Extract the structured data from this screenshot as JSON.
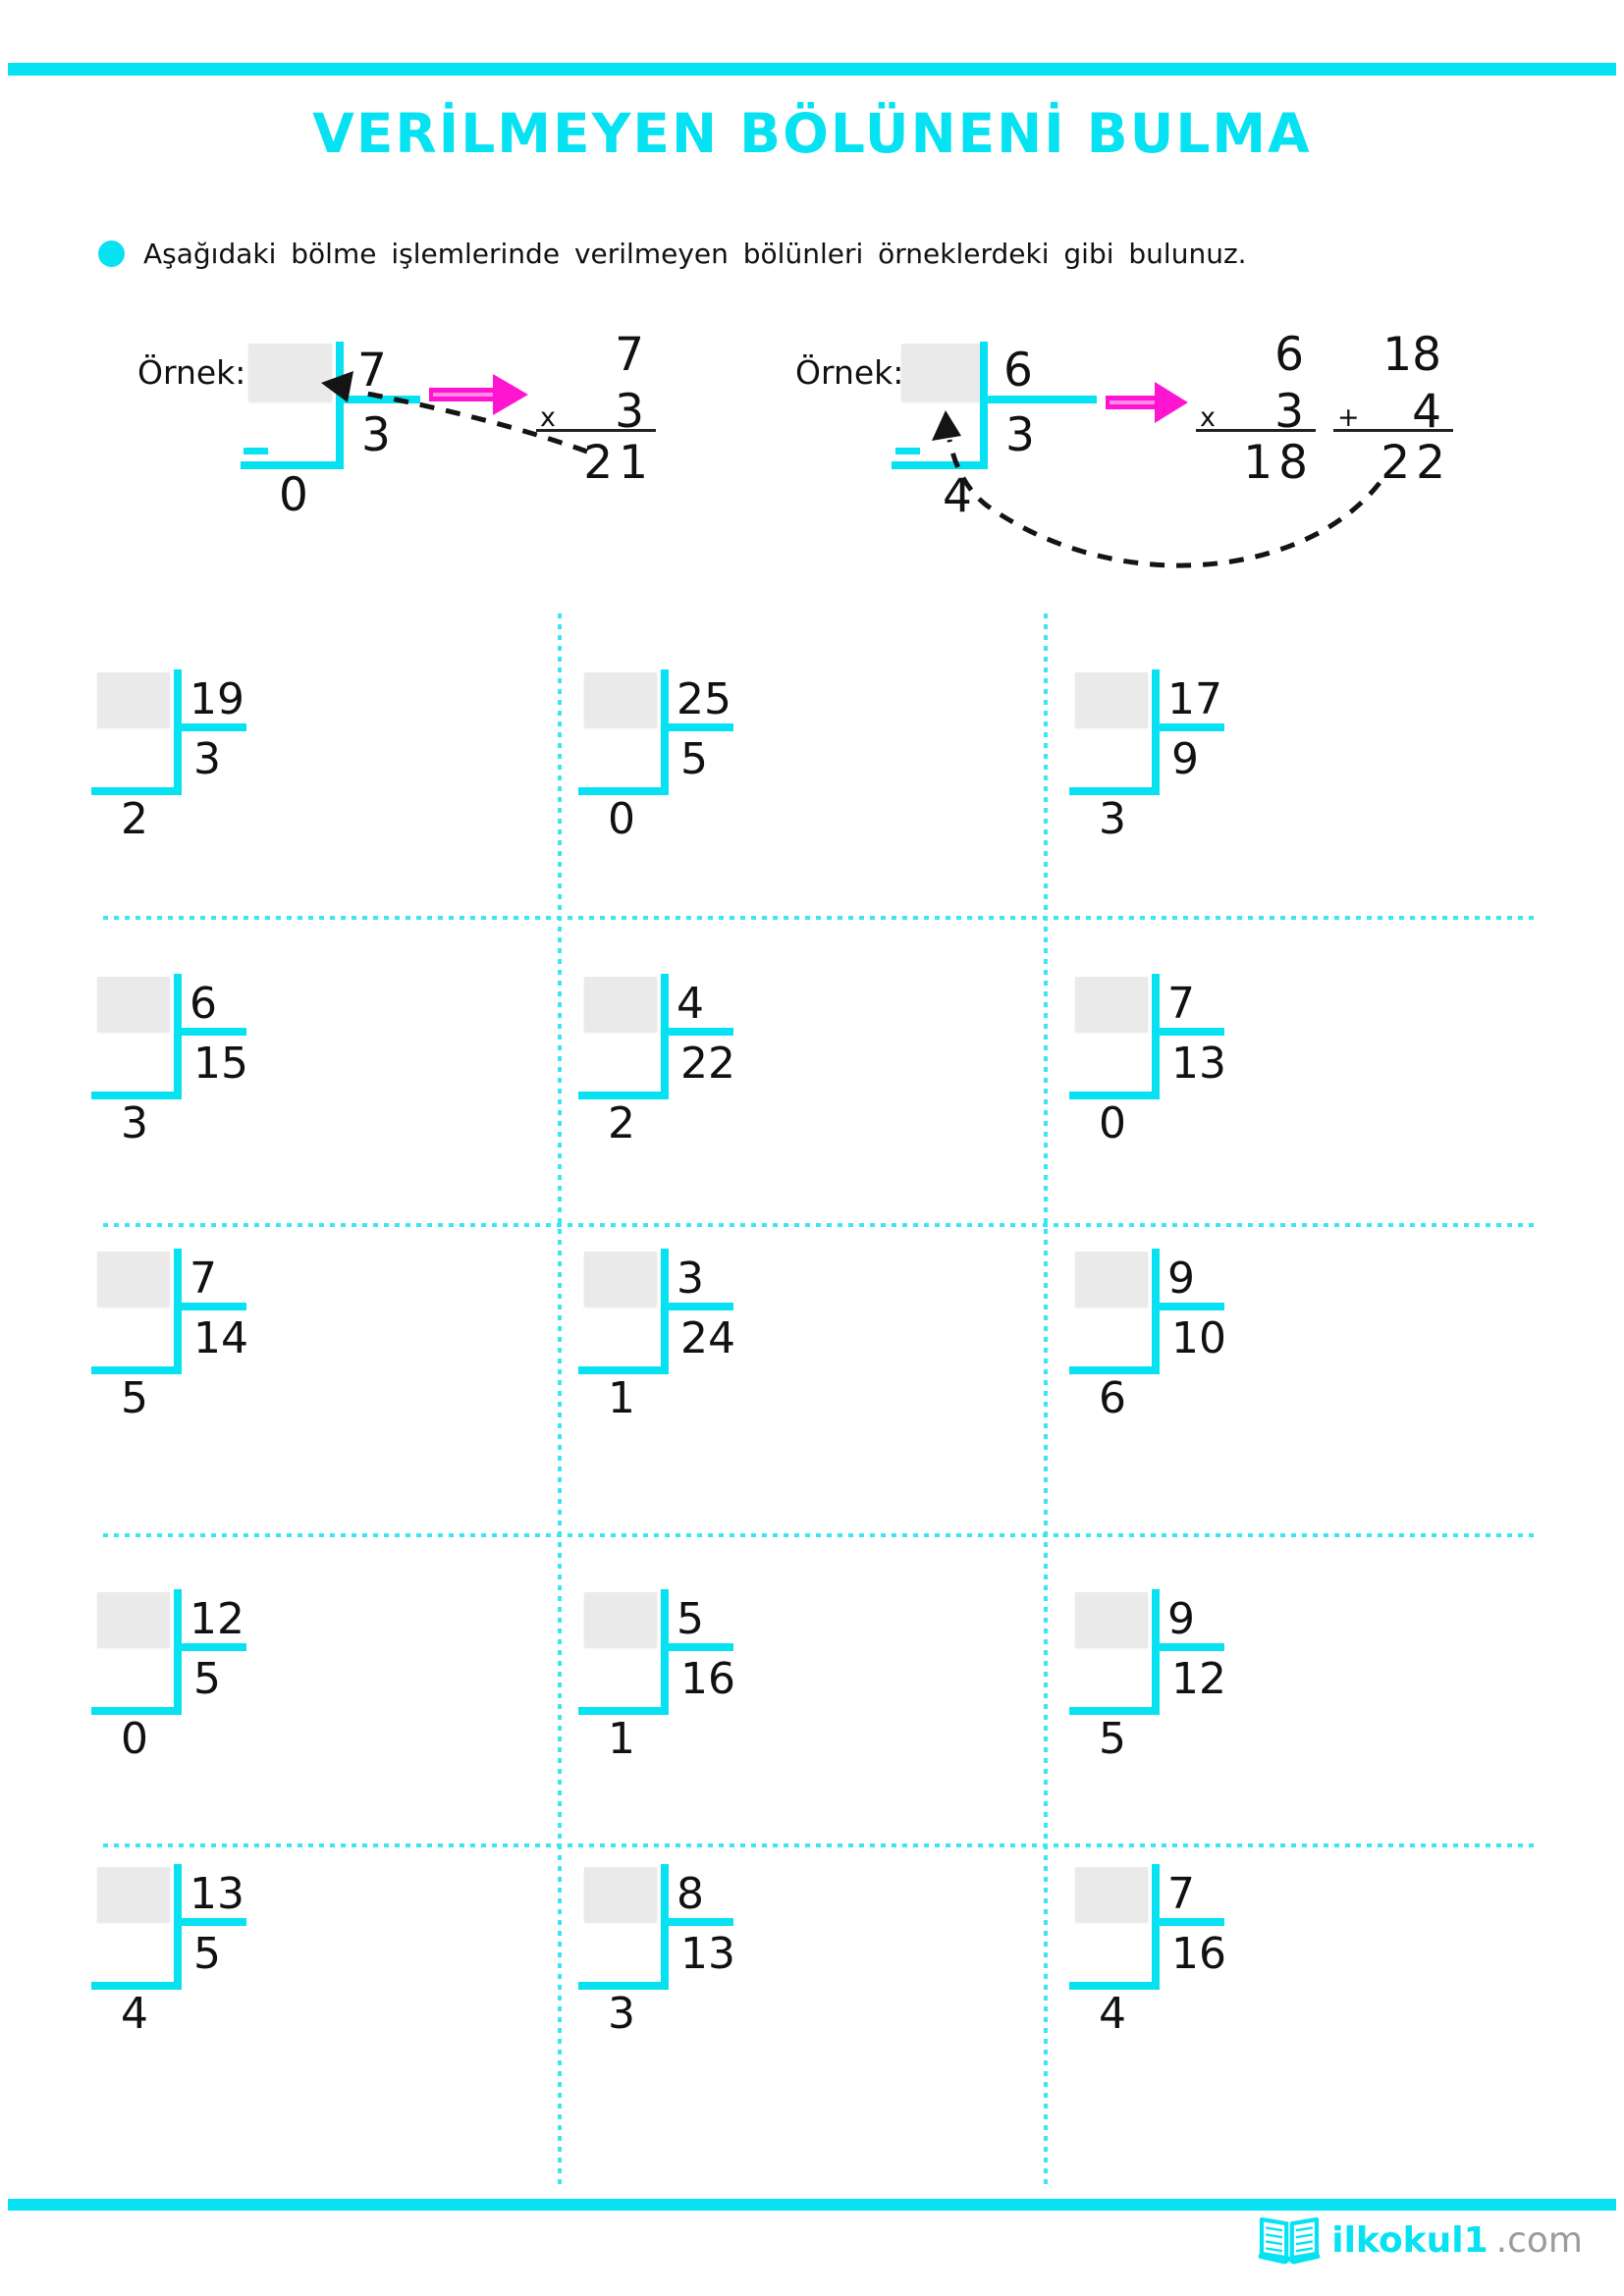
{
  "page": {
    "title": "VERİLMEYEN BÖLÜNENİ BULMA",
    "instruction": "Aşağıdaki bölme işlemlerinde verilmeyen bölünleri örneklerdeki gibi bulunuz."
  },
  "colors": {
    "accent_cyan": "#06e2f2",
    "arrow_magenta": "#ff14d2",
    "answer_box_gray": "#eaeaea",
    "text_black": "#111111",
    "logo_gray": "#9b9b9b"
  },
  "examples": {
    "label": "Örnek:",
    "ex1": {
      "divisor": "7",
      "quotient": "3",
      "remainder": "0",
      "mult_top": "7",
      "mult_sign": "x",
      "mult_bottom": "3",
      "mult_result": "21"
    },
    "ex2": {
      "divisor": "6",
      "quotient": "3",
      "remainder": "4",
      "mult_top": "6",
      "mult_sign": "x",
      "mult_bottom": "3",
      "mult_result": "18",
      "add_top": "18",
      "add_sign": "+",
      "add_bottom": "4",
      "add_result": "22"
    }
  },
  "problems": [
    {
      "divisor": "19",
      "quotient": "3",
      "remainder": "2"
    },
    {
      "divisor": "25",
      "quotient": "5",
      "remainder": "0"
    },
    {
      "divisor": "17",
      "quotient": "9",
      "remainder": "3"
    },
    {
      "divisor": "6",
      "quotient": "15",
      "remainder": "3"
    },
    {
      "divisor": "4",
      "quotient": "22",
      "remainder": "2"
    },
    {
      "divisor": "7",
      "quotient": "13",
      "remainder": "0"
    },
    {
      "divisor": "7",
      "quotient": "14",
      "remainder": "5"
    },
    {
      "divisor": "3",
      "quotient": "24",
      "remainder": "1"
    },
    {
      "divisor": "9",
      "quotient": "10",
      "remainder": "6"
    },
    {
      "divisor": "12",
      "quotient": "5",
      "remainder": "0"
    },
    {
      "divisor": "5",
      "quotient": "16",
      "remainder": "1"
    },
    {
      "divisor": "9",
      "quotient": "12",
      "remainder": "5"
    },
    {
      "divisor": "13",
      "quotient": "5",
      "remainder": "4"
    },
    {
      "divisor": "8",
      "quotient": "13",
      "remainder": "3"
    },
    {
      "divisor": "7",
      "quotient": "16",
      "remainder": "4"
    }
  ],
  "footer": {
    "logo_main": "ilkokul1",
    "logo_domain": ".com"
  }
}
